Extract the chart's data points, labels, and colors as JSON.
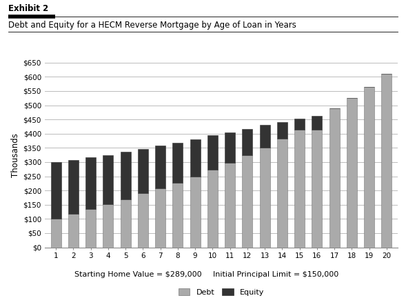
{
  "title_exhibit": "Exhibit 2",
  "title_main": "Debt and Equity for a HECM Reverse Mortgage by Age of Loan in Years",
  "xlabel_left": "Starting Home Value = $289,000",
  "xlabel_right": "Initial Principal Limit = $150,000",
  "ylabel": "Thousands",
  "years": [
    1,
    2,
    3,
    4,
    5,
    6,
    7,
    8,
    9,
    10,
    11,
    12,
    13,
    14,
    15,
    16,
    17,
    18,
    19,
    20
  ],
  "debt_vals": [
    100,
    118,
    135,
    152,
    170,
    190,
    208,
    228,
    250,
    273,
    298,
    323,
    352,
    383,
    415,
    415,
    488,
    525,
    565,
    610
  ],
  "total_vals": [
    300,
    308,
    316,
    325,
    336,
    347,
    358,
    368,
    380,
    395,
    405,
    416,
    430,
    440,
    453,
    462,
    488,
    525,
    565,
    610
  ],
  "debt_color": "#aaaaaa",
  "equity_color": "#333333",
  "background_color": "#ffffff",
  "grid_color": "#bbbbbb",
  "ylim": [
    0,
    650
  ],
  "ytick_vals": [
    0,
    50,
    100,
    150,
    200,
    250,
    300,
    350,
    400,
    450,
    500,
    550,
    600,
    650
  ],
  "ytick_labels": [
    "$0",
    "$50",
    "$100",
    "$150",
    "$200",
    "$250",
    "$300",
    "$350",
    "$400",
    "$450",
    "$500",
    "$550",
    "$600",
    "$650"
  ],
  "legend_debt": "Debt",
  "legend_equity": "Equity",
  "bar_width": 0.6,
  "exhibit_label_bold": true,
  "title_fontsize": 8.5,
  "exhibit_fontsize": 8.5,
  "tick_fontsize": 7.5,
  "ylabel_fontsize": 8.5,
  "xlabel_fontsize": 8.0,
  "legend_fontsize": 8.0
}
